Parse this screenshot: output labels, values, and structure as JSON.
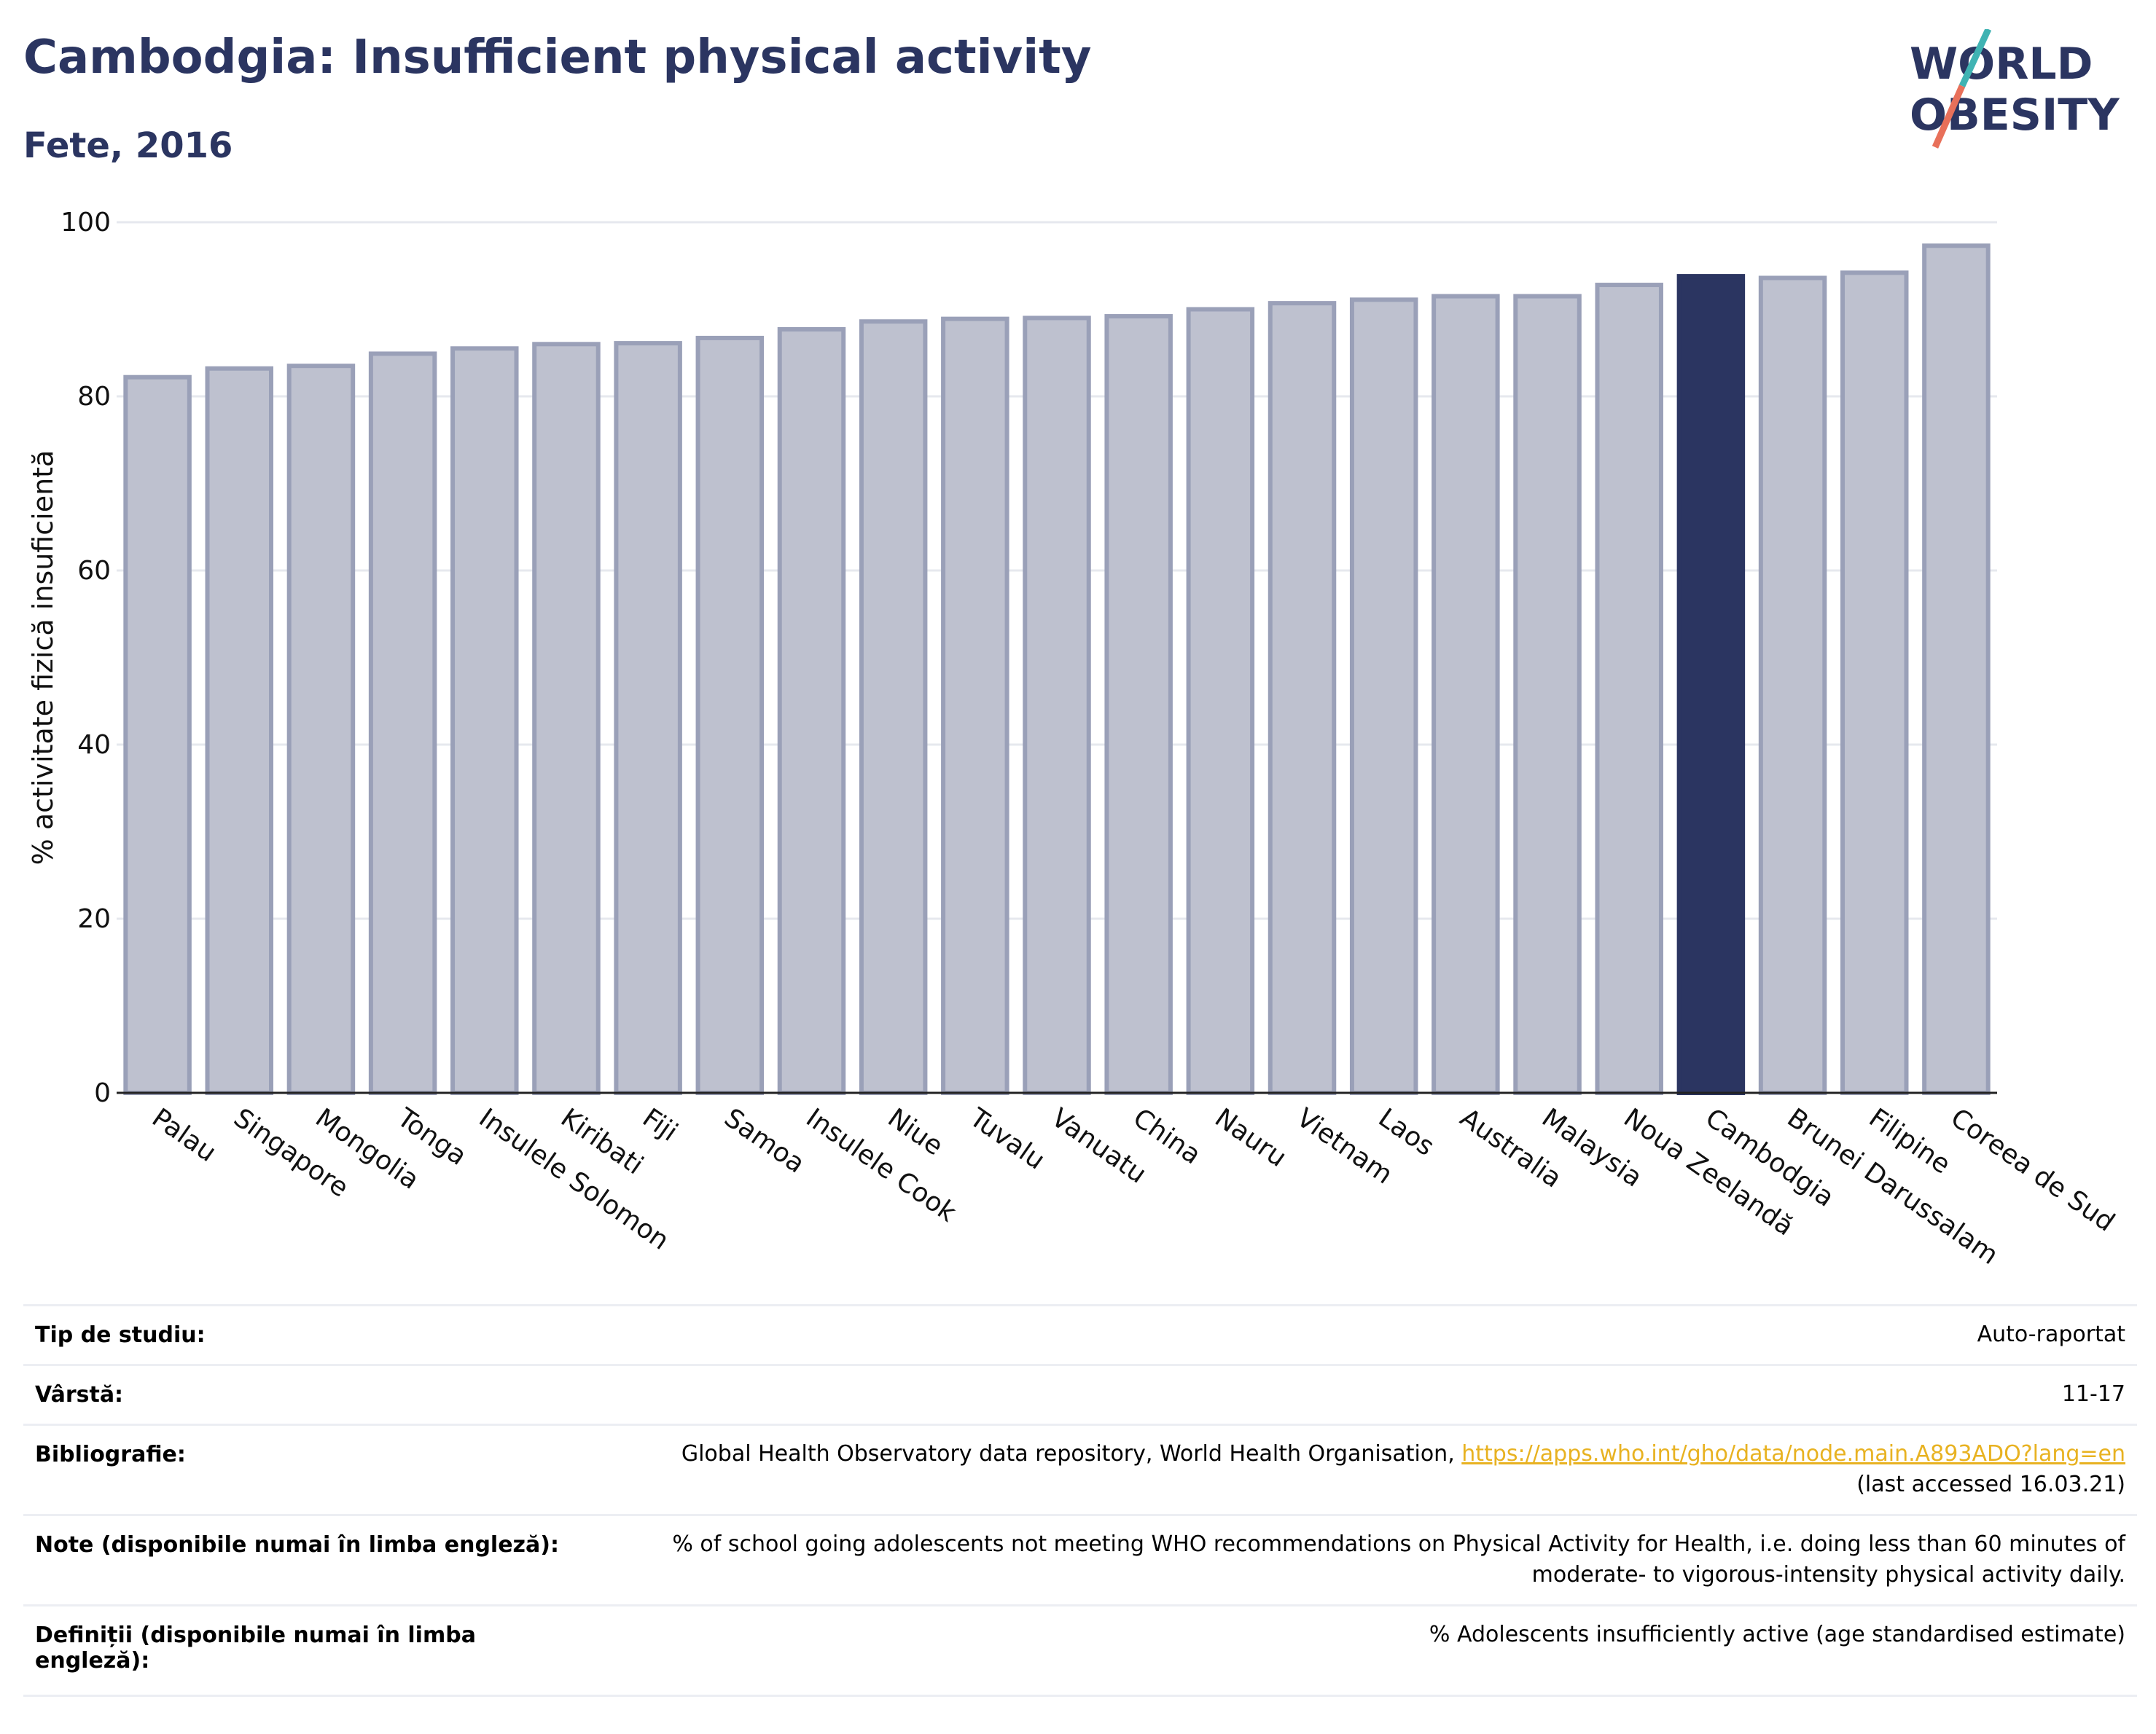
{
  "header": {
    "title": "Cambodgia: Insufficient physical activity",
    "subtitle": "Fete, 2016"
  },
  "logo": {
    "line1": "WORLD",
    "line2": "OBESITY"
  },
  "colors": {
    "highlight": "#2b3561",
    "bar_fill": "#bec1cf",
    "bar_stroke": "#9aa0b8",
    "slash_top": "#3fb3b3",
    "slash_bottom": "#e8705a",
    "link": "#e8b221"
  },
  "chart_data": {
    "type": "bar",
    "ylabel": "% activitate fizică insuficientă",
    "ylim": [
      0,
      100
    ],
    "yticks": [
      0,
      20,
      40,
      60,
      80,
      100
    ],
    "grid": true,
    "highlighted": "Cambodgia",
    "categories": [
      "Palau",
      "Singapore",
      "Mongolia",
      "Tonga",
      "Insulele Solomon",
      "Kiribati",
      "Fiji",
      "Samoa",
      "Insulele Cook",
      "Niue",
      "Tuvalu",
      "Vanuatu",
      "China",
      "Nauru",
      "Vietnam",
      "Laos",
      "Australia",
      "Malaysia",
      "Noua Zeelandă",
      "Cambodgia",
      "Brunei Darussalam",
      "Filipine",
      "Coreea de Sud"
    ],
    "values": [
      82.2,
      83.2,
      83.5,
      84.9,
      85.5,
      86.0,
      86.1,
      86.7,
      87.7,
      88.6,
      88.9,
      89.0,
      89.2,
      90.0,
      90.7,
      91.1,
      91.5,
      91.5,
      92.8,
      93.8,
      93.6,
      94.2,
      97.3
    ]
  },
  "info": {
    "rows": [
      {
        "label": "Tip de studiu:",
        "value": "Auto-raportat"
      },
      {
        "label": "Vârstă:",
        "value": "11-17"
      },
      {
        "label": "Bibliografie:",
        "value": "Global Health Observatory data repository, World Health Organisation, ",
        "link": "https://apps.who.int/gho/data/node.main.A893ADO?lang=en",
        "value2": "(last accessed 16.03.21)"
      },
      {
        "label": "Note (disponibile numai în limba engleză):",
        "value": "% of school going adolescents not meeting WHO recommendations on Physical Activity for Health, i.e. doing less than 60 minutes of",
        "value2": "moderate- to vigorous-intensity physical activity daily."
      },
      {
        "label": "Definiții (disponibile numai în limba",
        "label2": "engleză):",
        "value": "% Adolescents insufficiently active (age standardised estimate)"
      }
    ]
  }
}
